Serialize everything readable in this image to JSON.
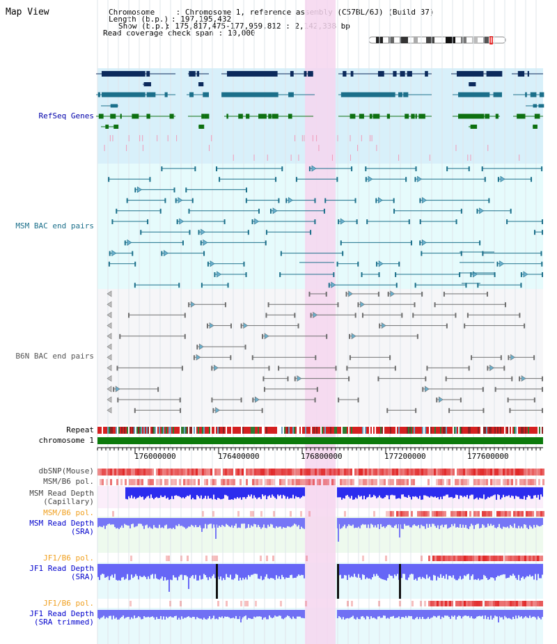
{
  "window_title": "Map View",
  "header": {
    "chromosome_key": "Chromosome",
    "chromosome_value": "Chromosome 1, reference assembly (C57BL/6J) (Build 37)",
    "length_key": "Length (b.p.)",
    "length_value": "197,195,432",
    "show_key": "Show (b.p.)",
    "show_value": "175,817,475-177,959,812 : 2,142,338 bp",
    "coverage_key": "Read coverage check span",
    "coverage_value": "10,000"
  },
  "tracks": {
    "refseq": "RefSeq Genes",
    "msm_bac": "MSM BAC end pairs",
    "b6n_bac": "B6N BAC end pairs",
    "repeat": "Repeat",
    "chromosome": "chromosome 1",
    "dbsnp": "dbSNP(Mouse)",
    "msm_b6_pol": "MSM/B6 pol.",
    "msm_read_depth_cap_1": "MSM Read Depth",
    "msm_read_depth_cap_2": "(Capillary)",
    "msm_b6_pol_2": "MSM/B6 pol.",
    "msm_read_depth_sra_1": "MSM Read Depth",
    "msm_read_depth_sra_2": "(SRA)",
    "jf1_b6_pol": "JF1/B6 pol.",
    "jf1_read_depth_sra_1": "JF1 Read Depth",
    "jf1_read_depth_sra_2": "(SRA)",
    "jf1_b6_pol_2": "JF1/B6 pol.",
    "jf1_read_depth_trim_1": "JF1 Read Depth",
    "jf1_read_depth_trim_2": "(SRA trimmed)"
  },
  "axis": {
    "ticks": [
      "176000000",
      "176400000",
      "176800000",
      "177200000",
      "177600000"
    ]
  },
  "colors": {
    "highlight": "#f6d6ef",
    "refseq_bg": "#d8f0fa",
    "bac_bg": "#e6fbfc",
    "b6n_bg": "#f6f6f8",
    "navy": "#0c2a5c",
    "teal": "#1b6f8a",
    "green": "#0d7010",
    "depth_blue": "#2222ee",
    "depth_light": "#6b6bf8",
    "snp_red": "#e02020"
  }
}
